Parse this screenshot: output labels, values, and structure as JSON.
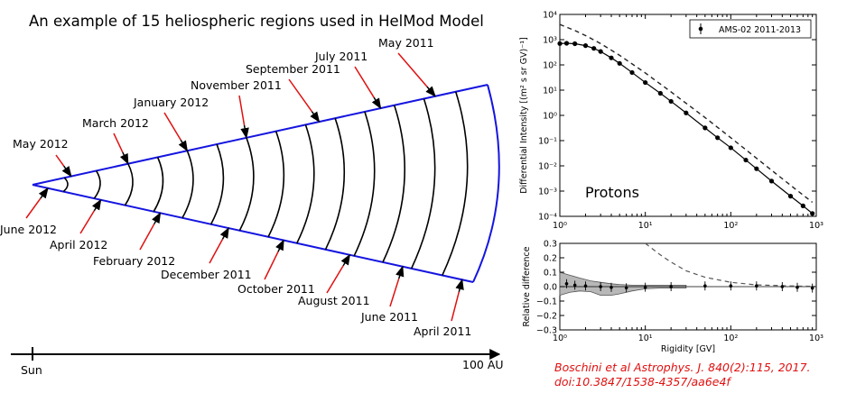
{
  "diagram": {
    "title": "An example of 15 heliospheric regions used in HelMod Model",
    "axis_start_label": "Sun",
    "axis_end_label": "100 AU",
    "regions_upper": [
      "May 2012",
      "March 2012",
      "January 2012",
      "November 2011",
      "September 2011",
      "July 2011",
      "May 2011"
    ],
    "regions_lower": [
      "June 2012",
      "April 2012",
      "February 2012",
      "December 2011",
      "October 2011",
      "August 2011",
      "June 2011",
      "April 2011"
    ],
    "colors": {
      "cone": "#1515e0",
      "arrows": "#e01010",
      "arcs": "#000000"
    }
  },
  "chart_data": [
    {
      "type": "line",
      "ylabel": "Differential Intensity [(m² s sr GV)⁻¹]",
      "xscale": "log",
      "yscale": "log",
      "xlim": [
        1,
        1000
      ],
      "ylim": [
        0.0001,
        10000
      ],
      "x_ticks": [
        "10⁰",
        "10¹",
        "10²",
        "10³"
      ],
      "y_ticks": [
        "10⁻⁴",
        "10⁻³",
        "10⁻²",
        "10⁻¹",
        "10⁰",
        "10¹",
        "10²",
        "10³",
        "10⁴"
      ],
      "annotation": "Protons",
      "legend": "AMS-02 2011-2013",
      "legend_position": "top-right",
      "series": [
        {
          "name": "AMS-02 2011-2013",
          "style": "markers",
          "x": [
            1,
            1.2,
            1.5,
            2,
            2.5,
            3,
            4,
            5,
            7,
            10,
            15,
            20,
            30,
            50,
            70,
            100,
            150,
            200,
            300,
            500,
            700,
            900
          ],
          "y": [
            700,
            720,
            690,
            580,
            450,
            340,
            190,
            115,
            50,
            20,
            7.5,
            3.6,
            1.25,
            0.32,
            0.13,
            0.052,
            0.017,
            0.0077,
            0.0025,
            0.00063,
            0.00026,
            0.00013
          ]
        },
        {
          "style": "dashed",
          "x": [
            1,
            1.5,
            2,
            3,
            5,
            10,
            20,
            50,
            100,
            200,
            500,
            900
          ],
          "y": [
            4000,
            2300,
            1450,
            700,
            240,
            48,
            8.5,
            0.82,
            0.13,
            0.02,
            0.0017,
            0.00036
          ]
        }
      ]
    },
    {
      "type": "line",
      "xlabel": "Rigidity [GV]",
      "ylabel": "Relative difference",
      "xscale": "log",
      "xlim": [
        1,
        1000
      ],
      "ylim": [
        -0.3,
        0.3
      ],
      "x_ticks": [
        "10⁰",
        "10¹",
        "10²",
        "10³"
      ],
      "y_ticks": [
        "−0.3",
        "−0.2",
        "−0.1",
        "0.0",
        "0.1",
        "0.2",
        "0.3"
      ],
      "series": [
        {
          "style": "dashed",
          "x": [
            10,
            15,
            20,
            30,
            50,
            100,
            200,
            500,
            1000
          ],
          "y": [
            0.3,
            0.22,
            0.17,
            0.11,
            0.065,
            0.03,
            0.012,
            0.005,
            0.002
          ]
        },
        {
          "style": "markers",
          "x": [
            1.2,
            1.5,
            2,
            3,
            4,
            6,
            10,
            20,
            50,
            100,
            200,
            400,
            600,
            900
          ],
          "y": [
            0.02,
            0.01,
            0.005,
            0.0,
            -0.005,
            -0.008,
            -0.004,
            0.0,
            0.005,
            0.005,
            0.005,
            0.0,
            -0.005,
            -0.01
          ]
        },
        {
          "style": "band",
          "x": [
            1,
            1.3,
            1.7,
            2.3,
            3,
            4,
            5,
            7,
            10,
            15,
            20,
            30
          ],
          "upper": [
            0.1,
            0.08,
            0.06,
            0.04,
            0.03,
            0.02,
            0.015,
            0.01,
            0.01,
            0.01,
            0.01,
            0.01
          ],
          "lower": [
            -0.06,
            -0.04,
            -0.03,
            -0.035,
            -0.06,
            -0.06,
            -0.05,
            -0.03,
            -0.015,
            -0.01,
            -0.01,
            -0.01
          ]
        }
      ]
    }
  ],
  "citation": {
    "line1": "Boschini et al Astrophys. J. 840(2):115, 2017.",
    "line2": "doi:10.3847/1538-4357/aa6e4f"
  }
}
